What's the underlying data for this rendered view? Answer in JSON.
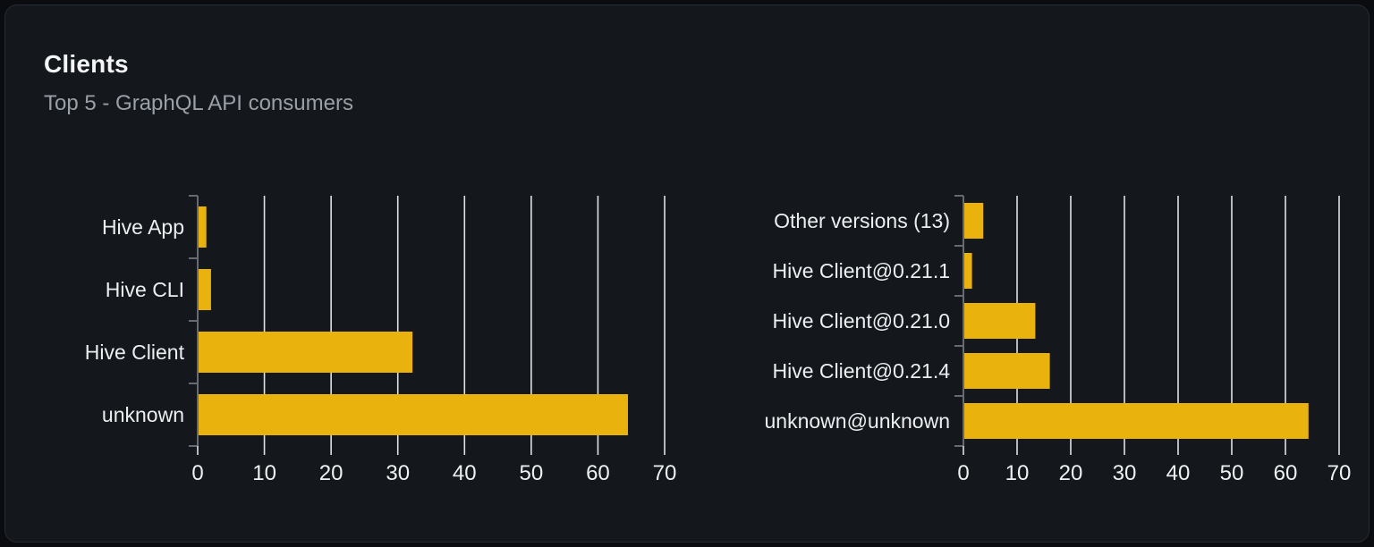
{
  "card": {
    "title": "Clients",
    "subtitle": "Top 5 - GraphQL API consumers"
  },
  "colors": {
    "bar": "#e9b20c",
    "grid": "#dde1ea",
    "axis": "#666b73",
    "category_label": "#eceef0",
    "tick_label": "#eef0f2",
    "title": "#f4f5f7",
    "subtitle": "#9aa0a8",
    "card_bg": "#14171c",
    "card_border": "#272b33",
    "page_bg": "#0a0c0f"
  },
  "chart_data": [
    {
      "type": "bar",
      "orientation": "horizontal",
      "title": "",
      "categories": [
        "Hive App",
        "Hive CLI",
        "Hive Client",
        "unknown"
      ],
      "values": [
        1.3,
        2,
        32.2,
        64.5
      ],
      "xlim": [
        0,
        70
      ],
      "xticks": [
        0,
        10,
        20,
        30,
        40,
        50,
        60,
        70
      ],
      "grid": true,
      "legend": false
    },
    {
      "type": "bar",
      "orientation": "horizontal",
      "title": "",
      "categories": [
        "Other versions (13)",
        "Hive Client@0.21.1",
        "Hive Client@0.21.0",
        "Hive Client@0.21.4",
        "unknown@unknown"
      ],
      "values": [
        3.7,
        1.6,
        13.4,
        16.1,
        64.3
      ],
      "xlim": [
        0,
        70
      ],
      "xticks": [
        0,
        10,
        20,
        30,
        40,
        50,
        60,
        70
      ],
      "grid": true,
      "legend": false
    }
  ]
}
